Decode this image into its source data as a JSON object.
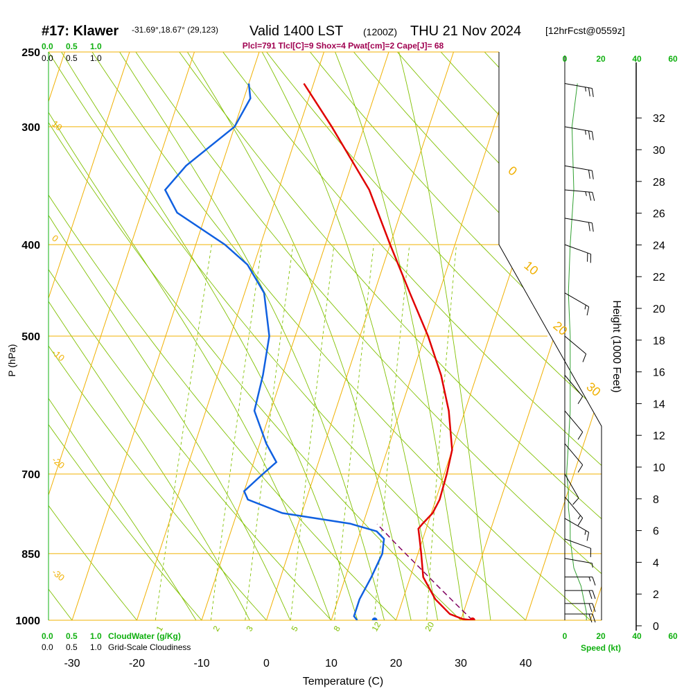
{
  "header": {
    "station": "#17: Klawer",
    "coords": "-31.69°,18.67° (29,123)",
    "valid": "Valid 1400 LST",
    "zulu": "(1200Z)",
    "date": "THU 21 Nov 2024",
    "forecast": "[12hrFcst@0559z]",
    "indices": "Plcl=791 Tlcl[C]=9 Shox=4 Pwat[cm]=2 Cape[J]= 68"
  },
  "colors": {
    "temperature": "#e00000",
    "dewpoint": "#1060e0",
    "parcel": "#800060",
    "isotherm": "#f0b000",
    "adiabat": "#80c000",
    "moist": "#80c000",
    "green": "#10b010",
    "wind_speed": "#30a030",
    "indices": "#a00050"
  },
  "chart_data": {
    "type": "line",
    "title": "Skew-T log-P",
    "xlabel": "Temperature (C)",
    "ylabel": "P (hPa)",
    "y2label": "Height (1000 Feet)",
    "xlim": [
      -30,
      45
    ],
    "pressure_ticks": [
      250,
      300,
      400,
      500,
      700,
      850,
      1000
    ],
    "temperature_ticks": [
      -30,
      -20,
      -10,
      0,
      10,
      20,
      30,
      40
    ],
    "height_ticks": [
      0,
      2,
      4,
      6,
      8,
      10,
      12,
      14,
      16,
      18,
      20,
      22,
      24,
      26,
      28,
      30,
      32
    ],
    "isotherm_labels": [
      "10",
      "0",
      "-10",
      "-20",
      "-30",
      "0",
      "10",
      "20",
      "30"
    ],
    "mixing_ratio_labels": [
      "1",
      "2",
      "3",
      "5",
      "8",
      "12",
      "20"
    ],
    "cloud_scale_top": {
      "values": [
        "0.0",
        "0.5",
        "1.0"
      ],
      "labels": [
        "0.0",
        "0.5",
        "1.0"
      ]
    },
    "cloud_scale_bottom": {
      "values": [
        "0.0",
        "0.5",
        "1.0"
      ],
      "cloudwater_label": "CloudWater (g/Kg)",
      "labels": [
        "0.0",
        "0.5",
        "1.0"
      ],
      "cloudiness_label": "Grid-Scale Cloudiness"
    },
    "speed_ticks": [
      "0",
      "20",
      "40",
      "60"
    ],
    "speed_label": "Speed (kt)",
    "series": [
      {
        "name": "temperature",
        "values": [
          {
            "p": 1000,
            "t": 31.8
          },
          {
            "p": 997,
            "t": 30.2
          },
          {
            "p": 985,
            "t": 28.0
          },
          {
            "p": 950,
            "t": 25.0
          },
          {
            "p": 900,
            "t": 22.0
          },
          {
            "p": 850,
            "t": 20.5
          },
          {
            "p": 820,
            "t": 19.5
          },
          {
            "p": 800,
            "t": 18.8
          },
          {
            "p": 790,
            "t": 19.2
          },
          {
            "p": 770,
            "t": 20.2
          },
          {
            "p": 745,
            "t": 20.6
          },
          {
            "p": 700,
            "t": 20.4
          },
          {
            "p": 660,
            "t": 20.0
          },
          {
            "p": 600,
            "t": 17.5
          },
          {
            "p": 550,
            "t": 14.5
          },
          {
            "p": 500,
            "t": 10.5
          },
          {
            "p": 450,
            "t": 5.5
          },
          {
            "p": 400,
            "t": 0.0
          },
          {
            "p": 350,
            "t": -6.0
          },
          {
            "p": 300,
            "t": -15.0
          },
          {
            "p": 270,
            "t": -21.5
          }
        ]
      },
      {
        "name": "dewpoint",
        "values": [
          {
            "p": 1000,
            "t": 14.0
          },
          {
            "p": 990,
            "t": 13.3
          },
          {
            "p": 950,
            "t": 13.3
          },
          {
            "p": 900,
            "t": 14.0
          },
          {
            "p": 850,
            "t": 14.5
          },
          {
            "p": 820,
            "t": 14.0
          },
          {
            "p": 805,
            "t": 12.5
          },
          {
            "p": 790,
            "t": 8.0
          },
          {
            "p": 770,
            "t": -3.0
          },
          {
            "p": 745,
            "t": -9.0
          },
          {
            "p": 730,
            "t": -10.0
          },
          {
            "p": 700,
            "t": -8.0
          },
          {
            "p": 680,
            "t": -6.5
          },
          {
            "p": 650,
            "t": -9.0
          },
          {
            "p": 600,
            "t": -12.5
          },
          {
            "p": 550,
            "t": -13.0
          },
          {
            "p": 500,
            "t": -14.0
          },
          {
            "p": 450,
            "t": -17.0
          },
          {
            "p": 420,
            "t": -21.0
          },
          {
            "p": 400,
            "t": -25.5
          },
          {
            "p": 370,
            "t": -34.5
          },
          {
            "p": 350,
            "t": -37.5
          },
          {
            "p": 330,
            "t": -35.5
          },
          {
            "p": 300,
            "t": -30.0
          },
          {
            "p": 280,
            "t": -29.0
          },
          {
            "p": 270,
            "t": -30.0
          }
        ]
      },
      {
        "name": "parcel",
        "values": [
          {
            "p": 1000,
            "t": 31.8
          },
          {
            "p": 960,
            "t": 28.3
          },
          {
            "p": 920,
            "t": 24.7
          },
          {
            "p": 880,
            "t": 21.0
          },
          {
            "p": 840,
            "t": 17.1
          },
          {
            "p": 791,
            "t": 12.2
          }
        ]
      }
    ],
    "wind": [
      {
        "p": 1000,
        "speed_kt": 12
      },
      {
        "p": 980,
        "speed_kt": 12
      },
      {
        "p": 960,
        "speed_kt": 11
      },
      {
        "p": 940,
        "speed_kt": 10
      },
      {
        "p": 920,
        "speed_kt": 9
      },
      {
        "p": 900,
        "speed_kt": 7
      },
      {
        "p": 880,
        "speed_kt": 5
      },
      {
        "p": 850,
        "speed_kt": 4
      },
      {
        "p": 820,
        "speed_kt": 3
      },
      {
        "p": 790,
        "speed_kt": 3
      },
      {
        "p": 760,
        "speed_kt": 2
      },
      {
        "p": 730,
        "speed_kt": 2
      },
      {
        "p": 700,
        "speed_kt": 1
      },
      {
        "p": 650,
        "speed_kt": 2
      },
      {
        "p": 600,
        "speed_kt": 3
      },
      {
        "p": 550,
        "speed_kt": 3
      },
      {
        "p": 500,
        "speed_kt": 3
      },
      {
        "p": 450,
        "speed_kt": 2
      },
      {
        "p": 400,
        "speed_kt": 3
      },
      {
        "p": 350,
        "speed_kt": 5
      },
      {
        "p": 300,
        "speed_kt": 4
      },
      {
        "p": 270,
        "speed_kt": 7
      }
    ],
    "wind_barbs": [
      {
        "p": 270,
        "dir": 280,
        "kt": 25
      },
      {
        "p": 300,
        "dir": 280,
        "kt": 25
      },
      {
        "p": 330,
        "dir": 280,
        "kt": 20
      },
      {
        "p": 350,
        "dir": 275,
        "kt": 25
      },
      {
        "p": 375,
        "dir": 280,
        "kt": 20
      },
      {
        "p": 400,
        "dir": 290,
        "kt": 20
      },
      {
        "p": 450,
        "dir": 300,
        "kt": 15
      },
      {
        "p": 500,
        "dir": 310,
        "kt": 10
      },
      {
        "p": 550,
        "dir": 320,
        "kt": 10
      },
      {
        "p": 600,
        "dir": 320,
        "kt": 10
      },
      {
        "p": 650,
        "dir": 320,
        "kt": 10
      },
      {
        "p": 700,
        "dir": 330,
        "kt": 10
      },
      {
        "p": 740,
        "dir": 320,
        "kt": 15
      },
      {
        "p": 780,
        "dir": 300,
        "kt": 15
      },
      {
        "p": 820,
        "dir": 290,
        "kt": 10
      },
      {
        "p": 860,
        "dir": 280,
        "kt": 5
      },
      {
        "p": 900,
        "dir": 270,
        "kt": 15
      },
      {
        "p": 930,
        "dir": 270,
        "kt": 20
      },
      {
        "p": 960,
        "dir": 270,
        "kt": 20
      },
      {
        "p": 985,
        "dir": 270,
        "kt": 20
      }
    ]
  }
}
